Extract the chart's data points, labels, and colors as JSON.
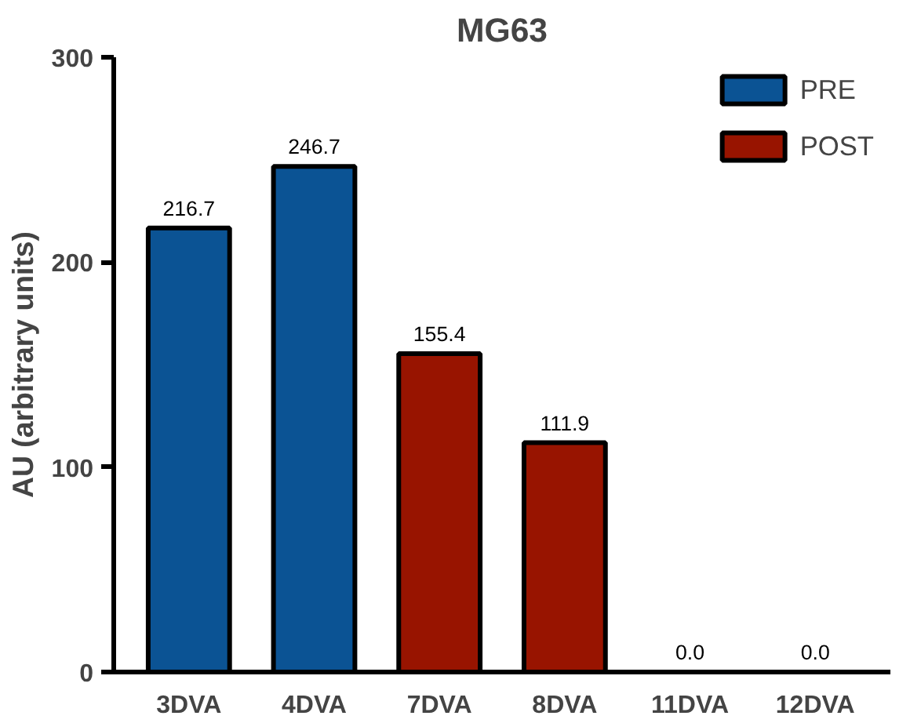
{
  "chart_data": {
    "type": "bar",
    "title": "MG63",
    "ylabel": "AU (arbitrary units)",
    "categories": [
      "3DVA",
      "4DVA",
      "7DVA",
      "8DVA",
      "11DVA",
      "12DVA"
    ],
    "series": [
      {
        "name": "PRE",
        "color": "#0b5394",
        "values": [
          216.7,
          246.7,
          null,
          null,
          null,
          null
        ],
        "value_labels": [
          "216.7",
          "246.7",
          null,
          null,
          null,
          null
        ]
      },
      {
        "name": "POST",
        "color": "#981400",
        "values": [
          null,
          null,
          155.4,
          111.9,
          0.0,
          0.0
        ],
        "value_labels": [
          null,
          null,
          "155.4",
          "111.9",
          "0.0",
          "0.0"
        ]
      }
    ],
    "stacked": true,
    "ylim": [
      0,
      300
    ],
    "yticks": [
      0,
      100,
      200,
      300
    ],
    "grid": false,
    "legend": "top right"
  }
}
